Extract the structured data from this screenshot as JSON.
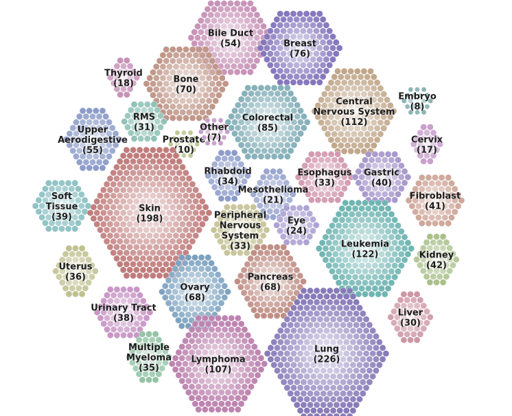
{
  "clusters": [
    {
      "name": "Bile Duct",
      "count": "(54)",
      "color": "#c893b8"
    },
    {
      "name": "Breast",
      "count": "(76)",
      "color": "#8577bd"
    },
    {
      "name": "Thyroid",
      "count": "(18)",
      "color": "#c893b8"
    },
    {
      "name": "Bone",
      "count": "(70)",
      "color": "#bf9688"
    },
    {
      "name": "Central Nervous System",
      "count": "(112)",
      "color": "#c0a689"
    },
    {
      "name": "Embryo",
      "count": "(8)",
      "color": "#8ab5b5"
    },
    {
      "name": "RMS",
      "count": "(31)",
      "color": "#8fc2b5"
    },
    {
      "name": "Colorectal",
      "count": "(85)",
      "color": "#87b1ba"
    },
    {
      "name": "Upper Aerodigestive",
      "count": "(55)",
      "color": "#8c9cc9"
    },
    {
      "name": "Prostate",
      "count": "(10)",
      "color": "#bcc48e"
    },
    {
      "name": "Other",
      "count": "(7)",
      "color": "#c8a0cc"
    },
    {
      "name": "Cervix",
      "count": "(17)",
      "color": "#c8a0cc"
    },
    {
      "name": "Rhabdoid",
      "count": "(34)",
      "color": "#8c9cc9"
    },
    {
      "name": "Esophagus",
      "count": "(33)",
      "color": "#d39ab0"
    },
    {
      "name": "Gastric",
      "count": "(40)",
      "color": "#a898cc"
    },
    {
      "name": "Soft Tissue",
      "count": "(39)",
      "color": "#8fc2c4"
    },
    {
      "name": "Skin",
      "count": "(198)",
      "color": "#c07c7c"
    },
    {
      "name": "Mesothelioma",
      "count": "(21)",
      "color": "#9aa6cf"
    },
    {
      "name": "Fibroblast",
      "count": "(41)",
      "color": "#cfa89a"
    },
    {
      "name": "Peripheral Nervous System",
      "count": "(33)",
      "color": "#c8c49b"
    },
    {
      "name": "Eye",
      "count": "(24)",
      "color": "#aba0d2"
    },
    {
      "name": "Leukemia",
      "count": "(122)",
      "color": "#6fb5b2"
    },
    {
      "name": "Uterus",
      "count": "(36)",
      "color": "#bfc08e"
    },
    {
      "name": "Kidney",
      "count": "(42)",
      "color": "#aac08b"
    },
    {
      "name": "Ovary",
      "count": "(68)",
      "color": "#7ba1bf"
    },
    {
      "name": "Pancreas",
      "count": "(68)",
      "color": "#c08f86"
    },
    {
      "name": "Urinary Tract",
      "count": "(38)",
      "color": "#c896c6"
    },
    {
      "name": "Liver",
      "count": "(30)",
      "color": "#cc97a4"
    },
    {
      "name": "Multiple Myeloma",
      "count": "(35)",
      "color": "#93c4a6"
    },
    {
      "name": "Lymphoma",
      "count": "(107)",
      "color": "#bd84b0"
    },
    {
      "name": "Lung",
      "count": "(226)",
      "color": "#877ab8"
    }
  ]
}
